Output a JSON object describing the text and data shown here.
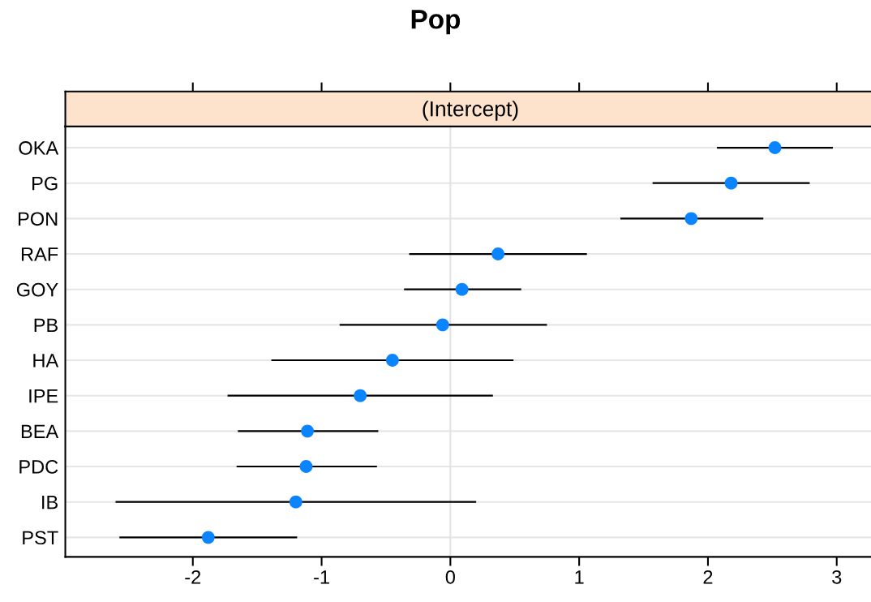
{
  "chart_data": {
    "type": "scatter",
    "orientation": "horizontal",
    "title": "Pop",
    "subtitle": "(Intercept)",
    "categories": [
      "OKA",
      "PG",
      "PON",
      "RAF",
      "GOY",
      "PB",
      "HA",
      "IPE",
      "BEA",
      "PDC",
      "IB",
      "PST"
    ],
    "values": [
      2.52,
      2.18,
      1.87,
      0.37,
      0.09,
      -0.06,
      -0.45,
      -0.7,
      -1.11,
      -1.12,
      -1.2,
      -1.88
    ],
    "errors": [
      [
        2.07,
        2.97
      ],
      [
        1.57,
        2.79
      ],
      [
        1.32,
        2.43
      ],
      [
        -0.32,
        1.06
      ],
      [
        -0.36,
        0.55
      ],
      [
        -0.86,
        0.75
      ],
      [
        -1.39,
        0.49
      ],
      [
        -1.73,
        0.33
      ],
      [
        -1.65,
        -0.56
      ],
      [
        -1.66,
        -0.57
      ],
      [
        -2.6,
        0.2
      ],
      [
        -2.57,
        -1.19
      ]
    ],
    "color": "#0a84ff",
    "marker": "circle",
    "grid": "y",
    "xlim": [
      -2.99,
      3.3
    ],
    "xticks": [
      -2,
      -1,
      0,
      1,
      2,
      3
    ],
    "ref_lines": [
      {
        "axis": "x",
        "value": 0,
        "color": "#e3e3e3"
      }
    ]
  }
}
